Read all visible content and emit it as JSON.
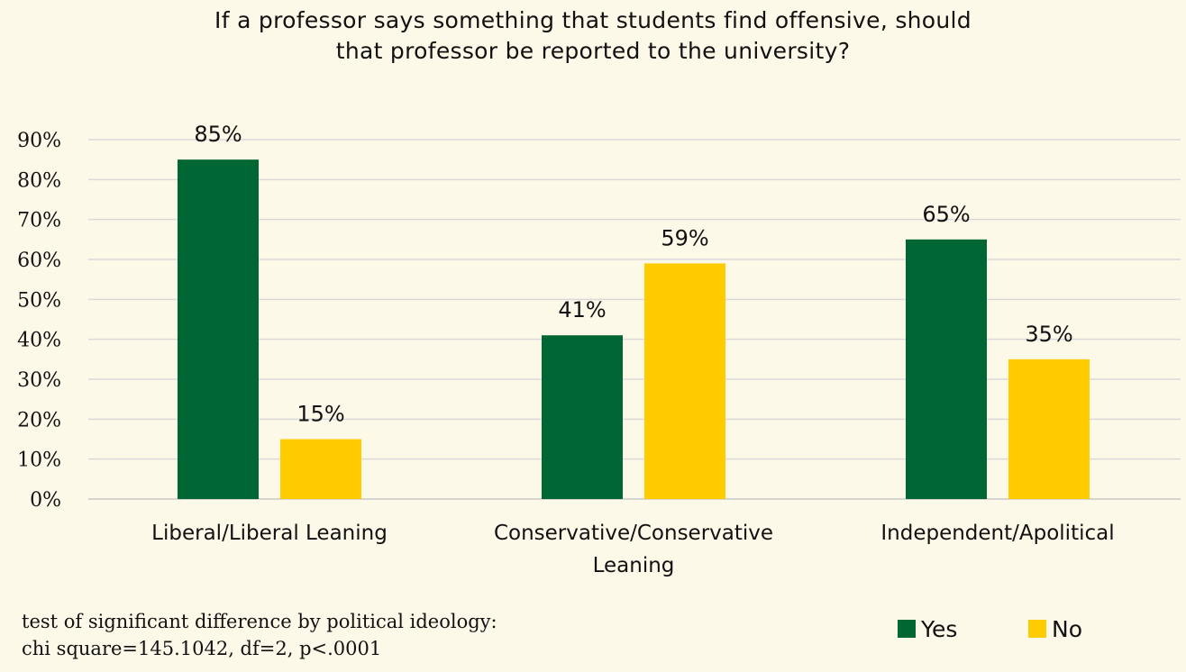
{
  "chart_data": {
    "type": "bar",
    "title_lines": [
      "If a professor says something that students find offensive, should",
      "that professor be reported to the university?"
    ],
    "categories": [
      [
        "Liberal/Liberal Leaning"
      ],
      [
        "Conservative/Conservative",
        "Leaning"
      ],
      [
        "Independent/Apolitical"
      ]
    ],
    "series": [
      {
        "name": "Yes",
        "color": "#006633",
        "values": [
          85,
          41,
          65
        ],
        "labels": [
          "85%",
          "41%",
          "65%"
        ]
      },
      {
        "name": "No",
        "color": "#ffcc00",
        "values": [
          15,
          59,
          35
        ],
        "labels": [
          "15%",
          "59%",
          "35%"
        ]
      }
    ],
    "y_ticks": [
      "0%",
      "10%",
      "20%",
      "30%",
      "40%",
      "50%",
      "60%",
      "70%",
      "80%",
      "90%"
    ],
    "ylim": [
      0,
      90
    ],
    "grid": true,
    "legend_position": "bottom-right",
    "annotation": [
      "test of significant difference by political ideology:",
      "chi square=145.1042, df=2, p<.0001"
    ]
  }
}
